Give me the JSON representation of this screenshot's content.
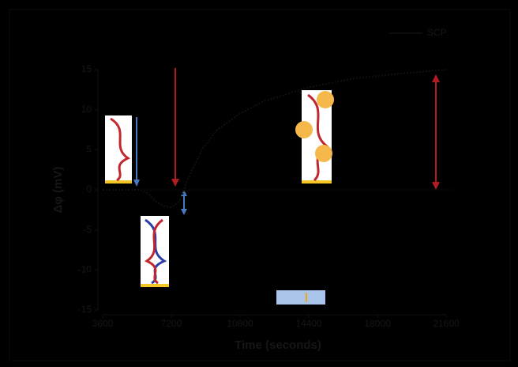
{
  "chart_data": {
    "type": "line",
    "xlabel": "Time (seconds)",
    "ylabel": "Δφ (mV)",
    "xlim": [
      3600,
      21600
    ],
    "xticks": [
      3600,
      7200,
      10800,
      14400,
      18000,
      21600
    ],
    "ylim": [
      -15,
      15
    ],
    "yticks": [
      -15,
      -10,
      -5,
      0,
      5,
      10,
      15
    ],
    "legend": "top-right",
    "series": [
      {
        "name": "SCP",
        "color": "#111111",
        "x": [
          3600,
          4800,
          5600,
          6000,
          6400,
          6800,
          7200,
          7600,
          7800,
          8000,
          8400,
          8800,
          9600,
          10800,
          12000,
          14400,
          16800,
          19200,
          21600
        ],
        "values": [
          0,
          0,
          0,
          -0.5,
          -1.5,
          -2,
          -2.2,
          -1.5,
          -0.5,
          1,
          3,
          5,
          7.5,
          9.5,
          11,
          12.8,
          13.9,
          14.5,
          15
        ]
      }
    ]
  }
}
